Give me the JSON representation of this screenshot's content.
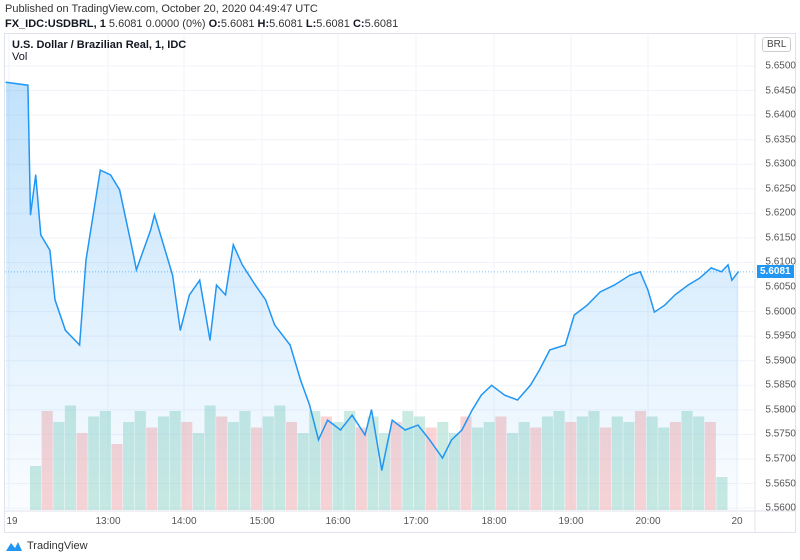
{
  "header": {
    "published": "Published on TradingView.com, October 20, 2020 04:49:47 UTC",
    "symbol": "FX_IDC:USDBRL, 1",
    "quote": " 5.6081 0.0000 (0%) ",
    "o_label": "O:",
    "o": "5.6081",
    "h_label": "H:",
    "h": "5.6081",
    "l_label": "L:",
    "l": "5.6081",
    "c_label": "C:",
    "c": "5.6081"
  },
  "legend": {
    "title": "U.S. Dollar / Brazilian Real, 1, IDC",
    "vol": "Vol"
  },
  "currency_button": "BRL",
  "footer": {
    "brand": "TradingView"
  },
  "chart_data": {
    "type": "area",
    "title": "U.S. Dollar / Brazilian Real, 1, IDC",
    "current_price": "5.6081",
    "ylim": [
      5.56,
      5.652
    ],
    "y_ticks": [
      "5.6500",
      "5.6450",
      "5.6400",
      "5.6350",
      "5.6300",
      "5.6250",
      "5.6200",
      "5.6150",
      "5.6100",
      "5.6050",
      "5.6000",
      "5.5950",
      "5.5900",
      "5.5850",
      "5.5800",
      "5.5750",
      "5.5700",
      "5.5650",
      "5.5600"
    ],
    "x_ticks": [
      "19",
      "13:00",
      "14:00",
      "15:00",
      "16:00",
      "17:00",
      "18:00",
      "19:00",
      "20:00",
      "20"
    ],
    "colors": {
      "line": "#2196f3",
      "fill": "#2196f3",
      "vol_up": "#a6dccf",
      "vol_down": "#f7b7b7"
    },
    "series": [
      {
        "x": "11:41",
        "y": 5.6467
      },
      {
        "x": "11:58",
        "y": 5.6461
      },
      {
        "x": "12:00",
        "y": 5.6197
      },
      {
        "x": "12:04",
        "y": 5.6278
      },
      {
        "x": "12:08",
        "y": 5.6156
      },
      {
        "x": "12:15",
        "y": 5.6125
      },
      {
        "x": "12:19",
        "y": 5.6024
      },
      {
        "x": "12:27",
        "y": 5.5962
      },
      {
        "x": "12:38",
        "y": 5.5932
      },
      {
        "x": "12:43",
        "y": 5.6105
      },
      {
        "x": "12:54",
        "y": 5.6288
      },
      {
        "x": "13:02",
        "y": 5.6278
      },
      {
        "x": "13:09",
        "y": 5.6248
      },
      {
        "x": "13:19",
        "y": 5.6125
      },
      {
        "x": "13:22",
        "y": 5.6085
      },
      {
        "x": "13:33",
        "y": 5.6166
      },
      {
        "x": "13:36",
        "y": 5.6197
      },
      {
        "x": "13:43",
        "y": 5.6136
      },
      {
        "x": "13:50",
        "y": 5.6074
      },
      {
        "x": "13:56",
        "y": 5.5962
      },
      {
        "x": "14:03",
        "y": 5.6034
      },
      {
        "x": "14:11",
        "y": 5.6064
      },
      {
        "x": "14:19",
        "y": 5.5942
      },
      {
        "x": "14:24",
        "y": 5.6054
      },
      {
        "x": "14:31",
        "y": 5.6034
      },
      {
        "x": "14:37",
        "y": 5.6136
      },
      {
        "x": "14:44",
        "y": 5.6095
      },
      {
        "x": "14:54",
        "y": 5.6054
      },
      {
        "x": "15:02",
        "y": 5.6024
      },
      {
        "x": "15:09",
        "y": 5.5973
      },
      {
        "x": "15:21",
        "y": 5.5932
      },
      {
        "x": "15:29",
        "y": 5.5861
      },
      {
        "x": "15:36",
        "y": 5.581
      },
      {
        "x": "15:43",
        "y": 5.5739
      },
      {
        "x": "15:50",
        "y": 5.5779
      },
      {
        "x": "16:00",
        "y": 5.5759
      },
      {
        "x": "16:09",
        "y": 5.5789
      },
      {
        "x": "16:19",
        "y": 5.5749
      },
      {
        "x": "16:24",
        "y": 5.58
      },
      {
        "x": "16:32",
        "y": 5.5677
      },
      {
        "x": "16:40",
        "y": 5.5779
      },
      {
        "x": "16:50",
        "y": 5.5759
      },
      {
        "x": "17:00",
        "y": 5.5769
      },
      {
        "x": "17:09",
        "y": 5.5739
      },
      {
        "x": "17:19",
        "y": 5.5702
      },
      {
        "x": "17:26",
        "y": 5.5739
      },
      {
        "x": "17:34",
        "y": 5.5759
      },
      {
        "x": "17:42",
        "y": 5.58
      },
      {
        "x": "17:49",
        "y": 5.583
      },
      {
        "x": "17:57",
        "y": 5.585
      },
      {
        "x": "18:07",
        "y": 5.583
      },
      {
        "x": "18:17",
        "y": 5.582
      },
      {
        "x": "18:27",
        "y": 5.585
      },
      {
        "x": "18:34",
        "y": 5.5881
      },
      {
        "x": "18:42",
        "y": 5.5922
      },
      {
        "x": "18:54",
        "y": 5.5932
      },
      {
        "x": "19:01",
        "y": 5.5993
      },
      {
        "x": "19:11",
        "y": 5.6013
      },
      {
        "x": "19:21",
        "y": 5.604
      },
      {
        "x": "19:32",
        "y": 5.6054
      },
      {
        "x": "19:44",
        "y": 5.6074
      },
      {
        "x": "19:52",
        "y": 5.6081
      },
      {
        "x": "19:58",
        "y": 5.6044
      },
      {
        "x": "20:03",
        "y": 5.5999
      },
      {
        "x": "20:11",
        "y": 5.6013
      },
      {
        "x": "20:19",
        "y": 5.6034
      },
      {
        "x": "20:29",
        "y": 5.6054
      },
      {
        "x": "20:38",
        "y": 5.6068
      },
      {
        "x": "20:47",
        "y": 5.6089
      },
      {
        "x": "20:55",
        "y": 5.6081
      },
      {
        "x": "21:00",
        "y": 5.6095
      },
      {
        "x": "21:03",
        "y": 5.6064
      },
      {
        "x": "21:08",
        "y": 5.6081
      }
    ],
    "volume": [
      0.4,
      0.9,
      0.8,
      0.95,
      0.7,
      0.85,
      0.9,
      0.6,
      0.8,
      0.9,
      0.75,
      0.85,
      0.9,
      0.8,
      0.7,
      0.95,
      0.85,
      0.8,
      0.9,
      0.75,
      0.85,
      0.95,
      0.8,
      0.7,
      0.9,
      0.85,
      0.8,
      0.9,
      0.75,
      0.85,
      0.7,
      0.8,
      0.9,
      0.85,
      0.75,
      0.8,
      0.7,
      0.85,
      0.75,
      0.8,
      0.85,
      0.7,
      0.8,
      0.75,
      0.85,
      0.9,
      0.8,
      0.85,
      0.9,
      0.75,
      0.85,
      0.8,
      0.9,
      0.85,
      0.75,
      0.8,
      0.9,
      0.85,
      0.8,
      0.3
    ],
    "grid": true
  }
}
